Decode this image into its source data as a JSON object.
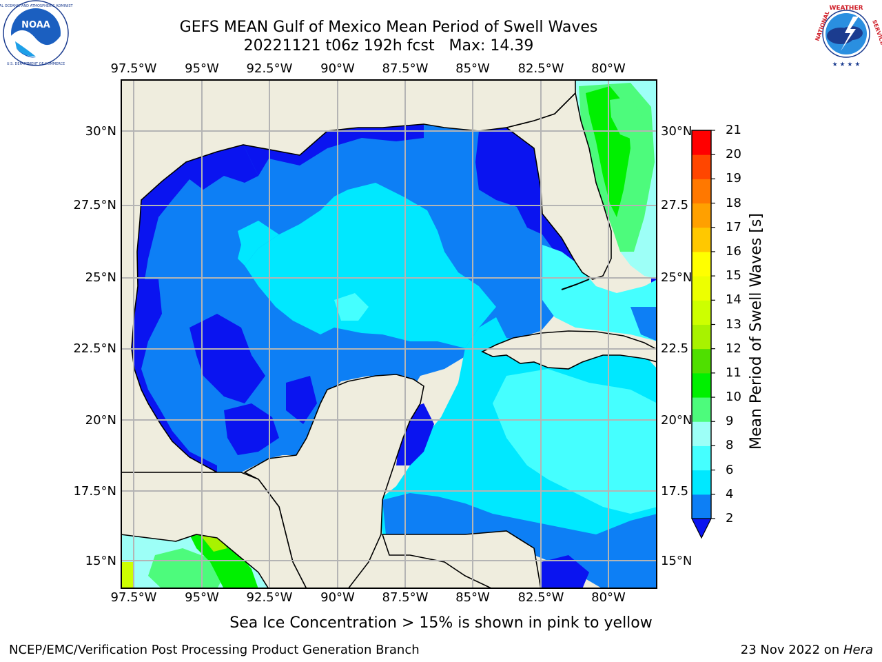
{
  "title": {
    "line1": "GEFS MEAN Gulf of Mexico Mean Period of Swell Waves",
    "line2": "20221121 t06z 192h fcst   Max: 14.39"
  },
  "map": {
    "region": "Gulf of Mexico",
    "lon_ticks_top": [
      "97.5°W",
      "95°W",
      "92.5°W",
      "90°W",
      "87.5°W",
      "85°W",
      "82.5°W",
      "80°W"
    ],
    "lon_ticks_bottom": [
      "97.5°W",
      "95°W",
      "92.5°W",
      "90°W",
      "87.5°W",
      "85°W",
      "82.5°W",
      "80°W"
    ],
    "lat_ticks_left": [
      "30°N",
      "27.5°N",
      "25°N",
      "22.5°N",
      "20°N",
      "17.5°N",
      "15°N"
    ],
    "lat_ticks_right": [
      "30°N",
      "27.5",
      "25°N",
      "22.5",
      "20°N",
      "17.5",
      "15°N"
    ],
    "colors": {
      "land": "#efedde",
      "grid": "#b4b4b4",
      "coast": "#000000"
    }
  },
  "colorbar": {
    "label": "Mean Period of Swell Waves [s]",
    "ticks": [
      "2",
      "4",
      "6",
      "8",
      "9",
      "10",
      "11",
      "12",
      "13",
      "14",
      "15",
      "16",
      "17",
      "18",
      "19",
      "20",
      "21"
    ],
    "levels": [
      {
        "from": 2,
        "to": 4,
        "color": "#0d7ff5"
      },
      {
        "from": 4,
        "to": 6,
        "color": "#00e8ff"
      },
      {
        "from": 6,
        "to": 8,
        "color": "#45ffff"
      },
      {
        "from": 8,
        "to": 9,
        "color": "#9dfff7"
      },
      {
        "from": 9,
        "to": 10,
        "color": "#4dfb7c"
      },
      {
        "from": 10,
        "to": 11,
        "color": "#00f000"
      },
      {
        "from": 11,
        "to": 12,
        "color": "#4fdf00"
      },
      {
        "from": 12,
        "to": 13,
        "color": "#a8f200"
      },
      {
        "from": 13,
        "to": 14,
        "color": "#cdff00"
      },
      {
        "from": 14,
        "to": 15,
        "color": "#edff00"
      },
      {
        "from": 15,
        "to": 16,
        "color": "#ffff00"
      },
      {
        "from": 16,
        "to": 17,
        "color": "#ffc800"
      },
      {
        "from": 17,
        "to": 18,
        "color": "#ffa000"
      },
      {
        "from": 18,
        "to": 19,
        "color": "#ff7800"
      },
      {
        "from": 19,
        "to": 20,
        "color": "#ff4600"
      },
      {
        "from": 20,
        "to": 21,
        "color": "#ff0000"
      }
    ],
    "under_color": "#0a14f0",
    "palette": {
      "deep_blue": "#0a14f0",
      "blue": "#0d7ff5",
      "cyan": "#00e8ff",
      "light_cyan": "#45ffff",
      "pale_cyan": "#9dfff7",
      "light_green": "#4dfb7c",
      "green": "#00f000"
    }
  },
  "note": "Sea Ice Concentration > 15% is shown in pink to yellow",
  "footer": {
    "left": "NCEP/EMC/Verification Post Processing Product Generation Branch",
    "right_prefix": "23 Nov 2022 on ",
    "right_host": "Hera"
  },
  "logos": {
    "left": {
      "name": "noaa-logo",
      "text": "NOAA",
      "ring": "NATIONAL OCEANIC AND ATMOSPHERIC ADMINISTRATION · U.S. DEPARTMENT OF COMMERCE"
    },
    "right": {
      "name": "nws-logo",
      "ring": "NATIONAL WEATHER SERVICE"
    }
  }
}
